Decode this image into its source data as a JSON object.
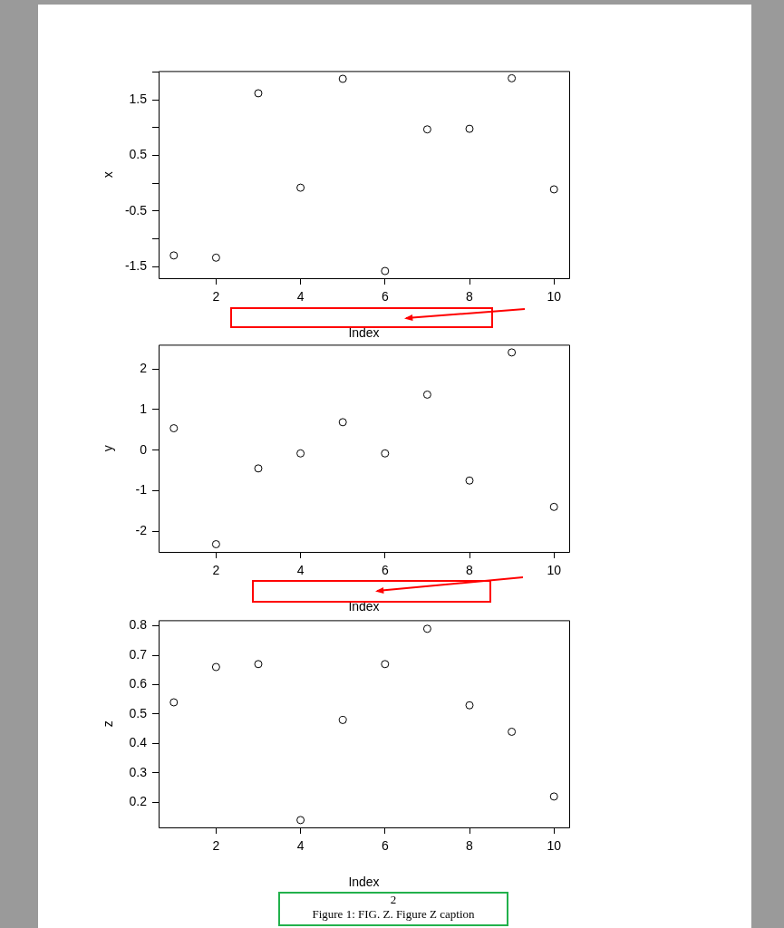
{
  "chart_data": [
    {
      "type": "scatter",
      "xlabel": "Index",
      "ylabel": "x",
      "marker": "circle",
      "grid": false,
      "legend": false,
      "x": [
        1,
        2,
        3,
        4,
        5,
        6,
        7,
        8,
        9,
        10
      ],
      "xlim": [
        0.64,
        10.36
      ],
      "xticks": [
        2,
        4,
        6,
        8,
        10
      ],
      "ylim": [
        -1.71,
        2.02
      ],
      "yticks": [
        -1.5,
        {
          "value": -1,
          "label": null
        },
        -0.5,
        {
          "value": 0,
          "label": null
        },
        0.5,
        {
          "value": 1,
          "label": null
        },
        1.5,
        {
          "value": 2,
          "label": null
        }
      ],
      "series": [
        {
          "color": "#000000",
          "values": [
            -1.3,
            -1.34,
            1.62,
            -0.08,
            1.88,
            -1.58,
            0.97,
            0.98,
            1.89,
            -0.11
          ]
        }
      ]
    },
    {
      "type": "scatter",
      "xlabel": "Index",
      "ylabel": "y",
      "marker": "circle",
      "grid": false,
      "legend": false,
      "x": [
        1,
        2,
        3,
        4,
        5,
        6,
        7,
        8,
        9,
        10
      ],
      "xlim": [
        0.64,
        10.36
      ],
      "xticks": [
        2,
        4,
        6,
        8,
        10
      ],
      "ylim": [
        -2.51,
        2.6
      ],
      "yticks": [
        -2,
        -1,
        0,
        1,
        2
      ],
      "series": [
        {
          "color": "#000000",
          "values": [
            0.54,
            -2.32,
            -0.45,
            -0.08,
            0.69,
            -0.08,
            1.37,
            -0.75,
            2.41,
            -1.4
          ]
        }
      ]
    },
    {
      "type": "scatter",
      "xlabel": "Index",
      "ylabel": "z",
      "marker": "circle",
      "grid": false,
      "legend": false,
      "x": [
        1,
        2,
        3,
        4,
        5,
        6,
        7,
        8,
        9,
        10
      ],
      "xlim": [
        0.64,
        10.36
      ],
      "xticks": [
        2,
        4,
        6,
        8,
        10
      ],
      "ylim": [
        0.115,
        0.819
      ],
      "yticks": [
        0.2,
        0.3,
        0.4,
        0.5,
        0.6,
        0.7,
        0.8
      ],
      "series": [
        {
          "color": "#000000",
          "values": [
            0.54,
            0.66,
            0.67,
            0.14,
            0.48,
            0.67,
            0.79,
            0.53,
            0.44,
            0.22
          ]
        }
      ],
      "annotations": [
        "2",
        "Figure 1: FIG. Z. Figure Z caption"
      ]
    }
  ]
}
